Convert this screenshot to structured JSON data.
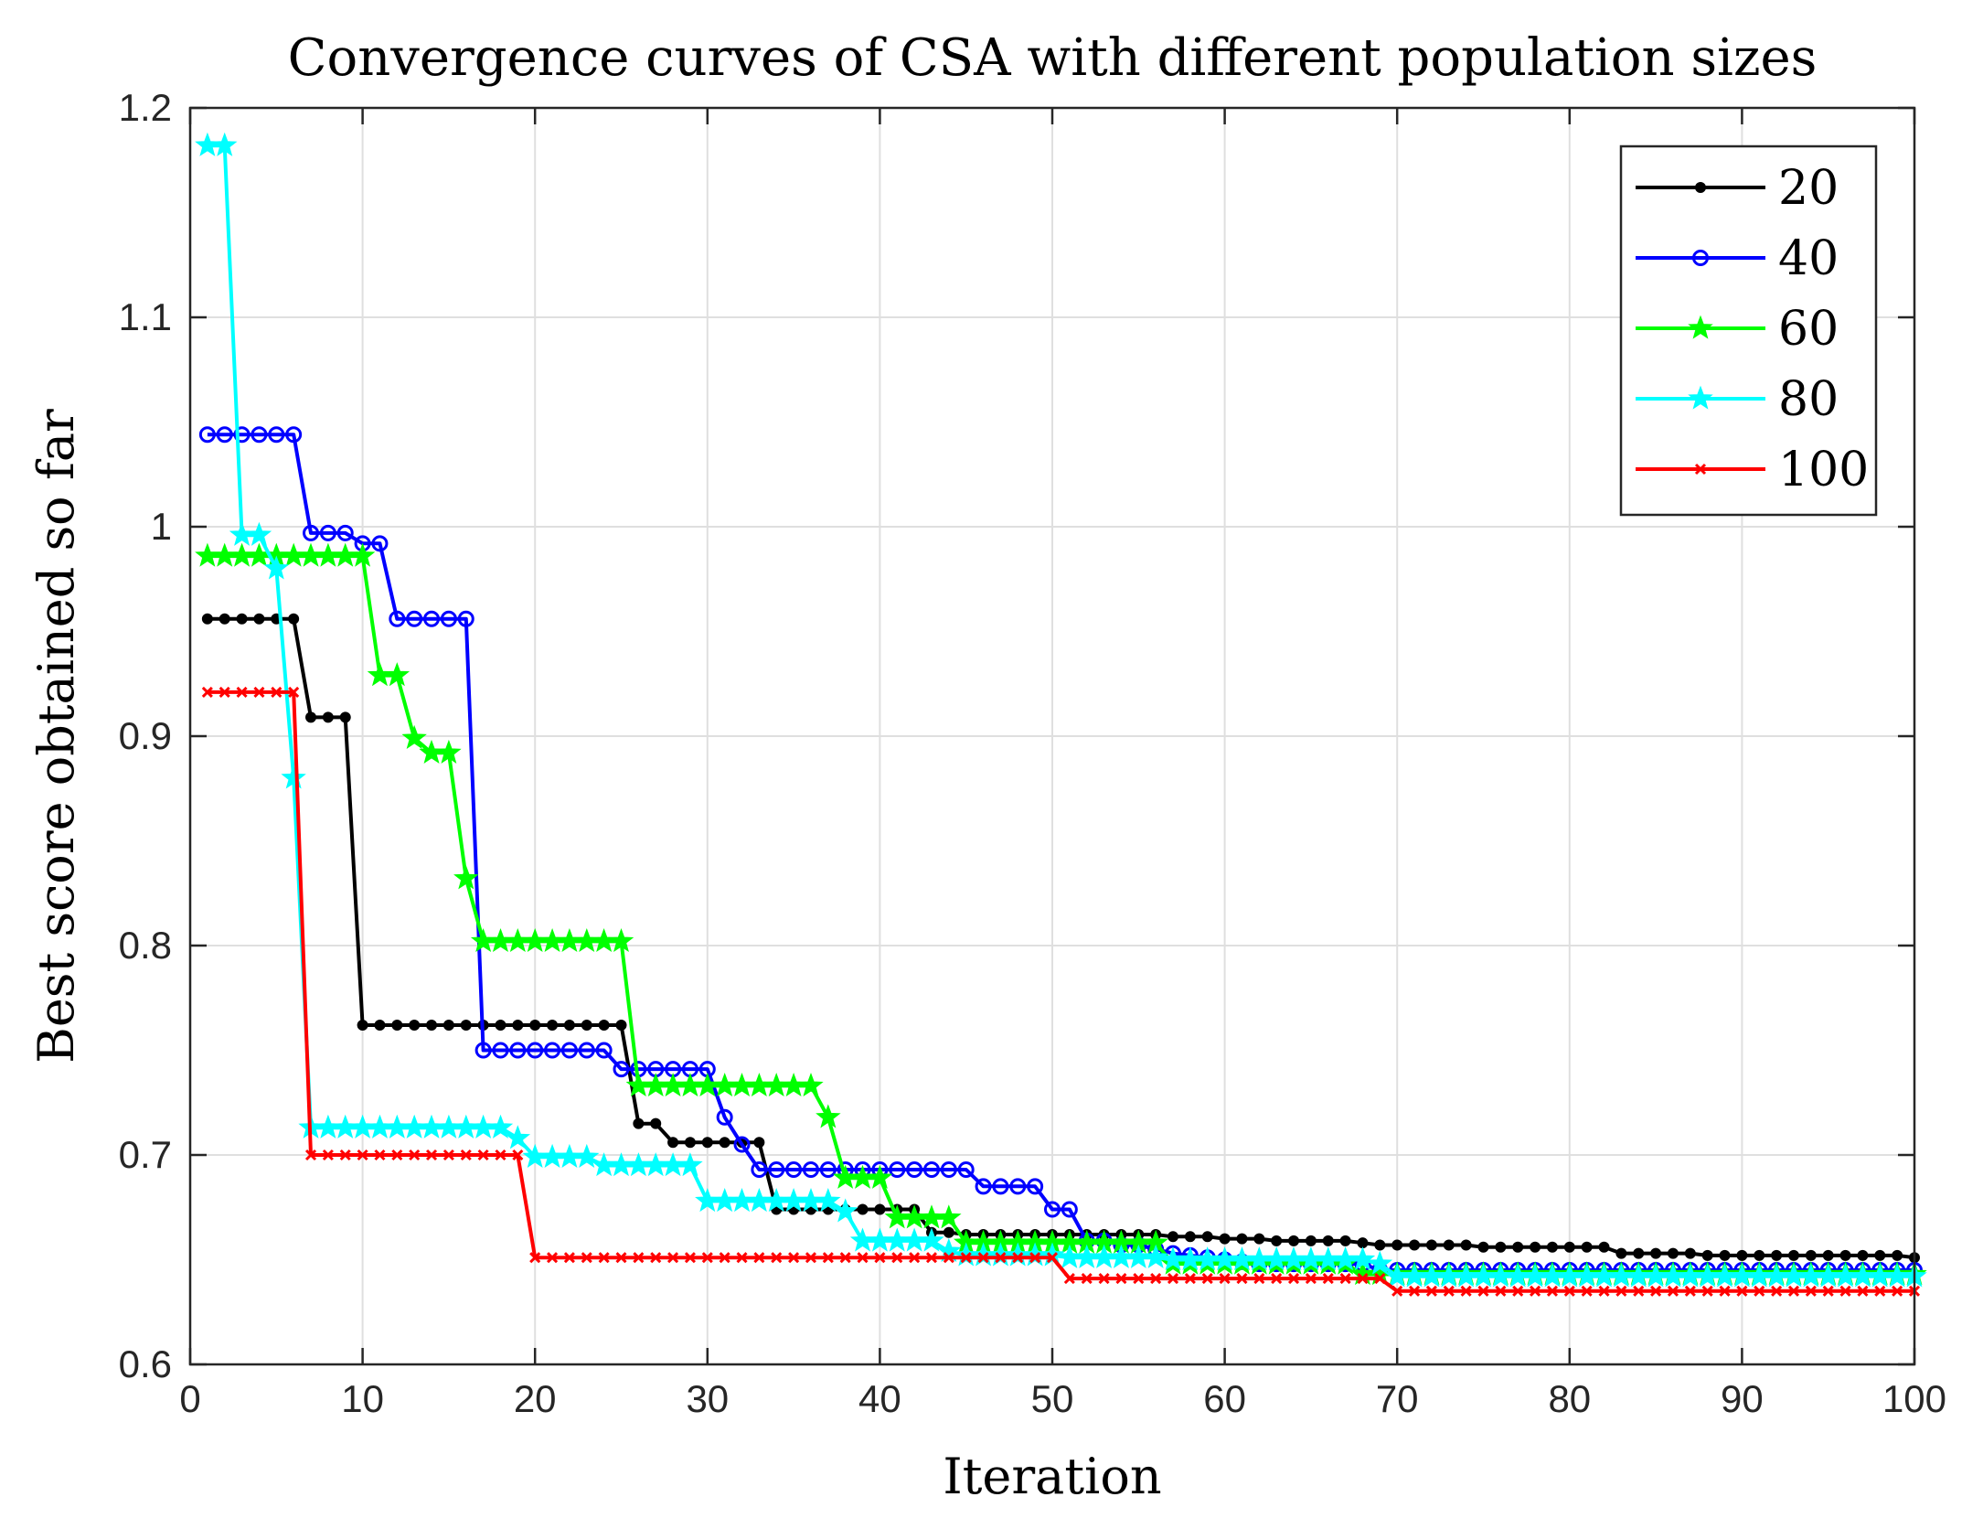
{
  "chart_data": {
    "type": "line",
    "title": "Convergence curves of CSA with different population sizes",
    "xlabel": "Iteration",
    "ylabel": "Best score obtained so far",
    "xlim": [
      0,
      100
    ],
    "ylim": [
      0.6,
      1.2
    ],
    "xticks": [
      "0",
      "10",
      "20",
      "30",
      "40",
      "50",
      "60",
      "70",
      "80",
      "90",
      "100"
    ],
    "yticks": [
      "0.6",
      "0.7",
      "0.8",
      "0.9",
      "1",
      "1.1",
      "1.2"
    ],
    "grid": true,
    "legend_position": "top-right",
    "series": [
      {
        "name": "20",
        "color": "#000000",
        "marker": "dot",
        "values": [
          0.956,
          0.956,
          0.956,
          0.956,
          0.956,
          0.956,
          0.909,
          0.909,
          0.909,
          0.762,
          0.762,
          0.762,
          0.762,
          0.762,
          0.762,
          0.762,
          0.762,
          0.762,
          0.762,
          0.762,
          0.762,
          0.762,
          0.762,
          0.762,
          0.762,
          0.715,
          0.715,
          0.706,
          0.706,
          0.706,
          0.706,
          0.706,
          0.706,
          0.674,
          0.674,
          0.674,
          0.674,
          0.674,
          0.674,
          0.674,
          0.674,
          0.674,
          0.663,
          0.663,
          0.662,
          0.662,
          0.662,
          0.662,
          0.662,
          0.662,
          0.662,
          0.662,
          0.662,
          0.662,
          0.662,
          0.662,
          0.661,
          0.661,
          0.661,
          0.66,
          0.66,
          0.66,
          0.659,
          0.659,
          0.659,
          0.659,
          0.659,
          0.658,
          0.657,
          0.657,
          0.657,
          0.657,
          0.657,
          0.657,
          0.656,
          0.656,
          0.656,
          0.656,
          0.656,
          0.656,
          0.656,
          0.656,
          0.653,
          0.653,
          0.653,
          0.653,
          0.653,
          0.652,
          0.652,
          0.652,
          0.652,
          0.652,
          0.652,
          0.652,
          0.652,
          0.652,
          0.652,
          0.652,
          0.652,
          0.651
        ]
      },
      {
        "name": "40",
        "color": "#0000ff",
        "marker": "circle",
        "values": [
          1.044,
          1.044,
          1.044,
          1.044,
          1.044,
          1.044,
          0.997,
          0.997,
          0.997,
          0.992,
          0.992,
          0.956,
          0.956,
          0.956,
          0.956,
          0.956,
          0.75,
          0.75,
          0.75,
          0.75,
          0.75,
          0.75,
          0.75,
          0.75,
          0.741,
          0.741,
          0.741,
          0.741,
          0.741,
          0.741,
          0.718,
          0.705,
          0.693,
          0.693,
          0.693,
          0.693,
          0.693,
          0.693,
          0.693,
          0.693,
          0.693,
          0.693,
          0.693,
          0.693,
          0.693,
          0.685,
          0.685,
          0.685,
          0.685,
          0.674,
          0.674,
          0.659,
          0.659,
          0.657,
          0.657,
          0.655,
          0.653,
          0.652,
          0.651,
          0.65,
          0.649,
          0.648,
          0.648,
          0.648,
          0.648,
          0.648,
          0.648,
          0.648,
          0.645,
          0.645,
          0.645,
          0.645,
          0.645,
          0.645,
          0.645,
          0.645,
          0.645,
          0.645,
          0.645,
          0.645,
          0.645,
          0.645,
          0.645,
          0.645,
          0.645,
          0.645,
          0.645,
          0.645,
          0.645,
          0.645,
          0.645,
          0.645,
          0.645,
          0.645,
          0.645,
          0.645,
          0.645,
          0.645,
          0.645,
          0.645
        ]
      },
      {
        "name": "60",
        "color": "#00ff00",
        "marker": "star",
        "values": [
          0.986,
          0.986,
          0.986,
          0.986,
          0.986,
          0.986,
          0.986,
          0.986,
          0.986,
          0.986,
          0.929,
          0.929,
          0.899,
          0.892,
          0.892,
          0.832,
          0.802,
          0.802,
          0.802,
          0.802,
          0.802,
          0.802,
          0.802,
          0.802,
          0.802,
          0.733,
          0.733,
          0.733,
          0.733,
          0.733,
          0.733,
          0.733,
          0.733,
          0.733,
          0.733,
          0.733,
          0.718,
          0.689,
          0.689,
          0.689,
          0.67,
          0.67,
          0.67,
          0.67,
          0.658,
          0.658,
          0.658,
          0.658,
          0.658,
          0.658,
          0.658,
          0.658,
          0.658,
          0.658,
          0.658,
          0.658,
          0.648,
          0.648,
          0.648,
          0.648,
          0.648,
          0.648,
          0.648,
          0.648,
          0.648,
          0.648,
          0.648,
          0.643,
          0.643,
          0.643,
          0.643,
          0.643,
          0.643,
          0.643,
          0.643,
          0.643,
          0.643,
          0.643,
          0.643,
          0.643,
          0.643,
          0.643,
          0.643,
          0.643,
          0.643,
          0.643,
          0.643,
          0.643,
          0.643,
          0.643,
          0.643,
          0.643,
          0.643,
          0.643,
          0.643,
          0.643,
          0.643,
          0.643,
          0.643,
          0.643
        ]
      },
      {
        "name": "80",
        "color": "#00ffff",
        "marker": "star",
        "values": [
          1.182,
          1.182,
          0.996,
          0.996,
          0.98,
          0.88,
          0.713,
          0.713,
          0.713,
          0.713,
          0.713,
          0.713,
          0.713,
          0.713,
          0.713,
          0.713,
          0.713,
          0.713,
          0.708,
          0.699,
          0.699,
          0.699,
          0.699,
          0.695,
          0.695,
          0.695,
          0.695,
          0.695,
          0.695,
          0.678,
          0.678,
          0.678,
          0.678,
          0.678,
          0.678,
          0.678,
          0.678,
          0.673,
          0.659,
          0.659,
          0.659,
          0.659,
          0.659,
          0.654,
          0.652,
          0.652,
          0.652,
          0.652,
          0.652,
          0.652,
          0.651,
          0.651,
          0.651,
          0.651,
          0.651,
          0.651,
          0.65,
          0.65,
          0.65,
          0.65,
          0.65,
          0.65,
          0.65,
          0.65,
          0.65,
          0.65,
          0.65,
          0.65,
          0.648,
          0.642,
          0.642,
          0.642,
          0.642,
          0.642,
          0.642,
          0.642,
          0.642,
          0.642,
          0.642,
          0.642,
          0.642,
          0.642,
          0.642,
          0.642,
          0.642,
          0.642,
          0.642,
          0.642,
          0.642,
          0.642,
          0.642,
          0.642,
          0.642,
          0.642,
          0.642,
          0.642,
          0.642,
          0.642,
          0.642,
          0.642
        ]
      },
      {
        "name": "100",
        "color": "#ff0000",
        "marker": "x",
        "values": [
          0.921,
          0.921,
          0.921,
          0.921,
          0.921,
          0.921,
          0.7,
          0.7,
          0.7,
          0.7,
          0.7,
          0.7,
          0.7,
          0.7,
          0.7,
          0.7,
          0.7,
          0.7,
          0.7,
          0.651,
          0.651,
          0.651,
          0.651,
          0.651,
          0.651,
          0.651,
          0.651,
          0.651,
          0.651,
          0.651,
          0.651,
          0.651,
          0.651,
          0.651,
          0.651,
          0.651,
          0.651,
          0.651,
          0.651,
          0.651,
          0.651,
          0.651,
          0.651,
          0.651,
          0.651,
          0.651,
          0.651,
          0.651,
          0.651,
          0.651,
          0.641,
          0.641,
          0.641,
          0.641,
          0.641,
          0.641,
          0.641,
          0.641,
          0.641,
          0.641,
          0.641,
          0.641,
          0.641,
          0.641,
          0.641,
          0.641,
          0.641,
          0.641,
          0.641,
          0.635,
          0.635,
          0.635,
          0.635,
          0.635,
          0.635,
          0.635,
          0.635,
          0.635,
          0.635,
          0.635,
          0.635,
          0.635,
          0.635,
          0.635,
          0.635,
          0.635,
          0.635,
          0.635,
          0.635,
          0.635,
          0.635,
          0.635,
          0.635,
          0.635,
          0.635,
          0.635,
          0.635,
          0.635,
          0.635,
          0.635
        ]
      }
    ]
  }
}
